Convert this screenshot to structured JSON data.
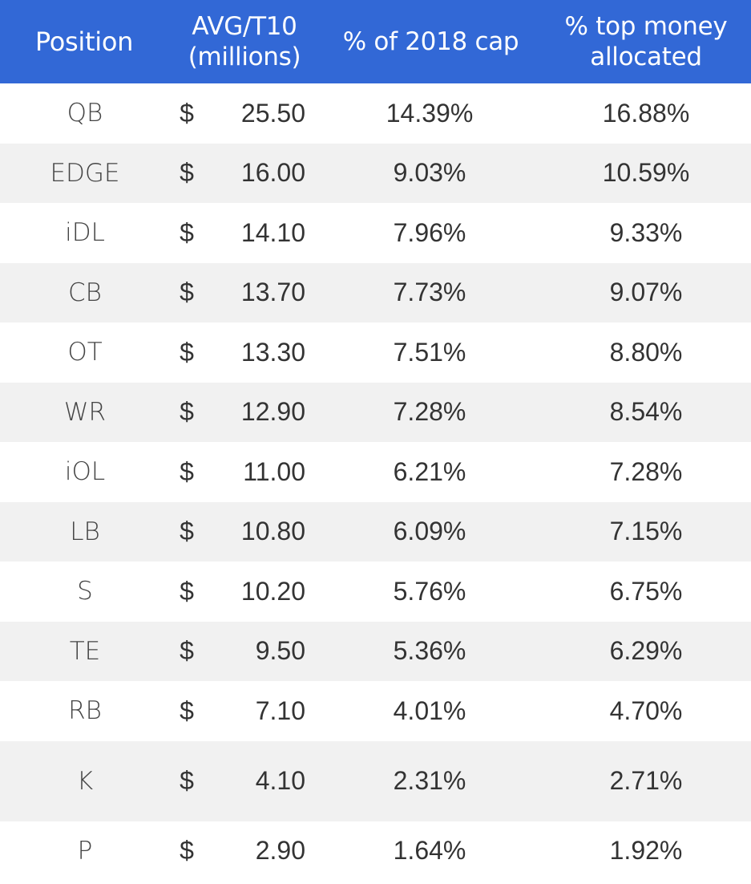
{
  "table": {
    "headers": {
      "position": "Position",
      "avg_line1": "AVG/T10",
      "avg_line2": "(millions)",
      "cap": "% of 2018 cap",
      "top_line1": "% top money",
      "top_line2": "allocated"
    },
    "currency_symbol": "$",
    "rows": [
      {
        "position": "QB",
        "avg": "25.50",
        "cap": "14.39%",
        "top": "16.88%"
      },
      {
        "position": "EDGE",
        "avg": "16.00",
        "cap": "9.03%",
        "top": "10.59%"
      },
      {
        "position": "iDL",
        "avg": "14.10",
        "cap": "7.96%",
        "top": "9.33%"
      },
      {
        "position": "CB",
        "avg": "13.70",
        "cap": "7.73%",
        "top": "9.07%"
      },
      {
        "position": "OT",
        "avg": "13.30",
        "cap": "7.51%",
        "top": "8.80%"
      },
      {
        "position": "WR",
        "avg": "12.90",
        "cap": "7.28%",
        "top": "8.54%"
      },
      {
        "position": "iOL",
        "avg": "11.00",
        "cap": "6.21%",
        "top": "7.28%"
      },
      {
        "position": "LB",
        "avg": "10.80",
        "cap": "6.09%",
        "top": "7.15%"
      },
      {
        "position": "S",
        "avg": "10.20",
        "cap": "5.76%",
        "top": "6.75%"
      },
      {
        "position": "TE",
        "avg": "9.50",
        "cap": "5.36%",
        "top": "6.29%"
      },
      {
        "position": "RB",
        "avg": "7.10",
        "cap": "4.01%",
        "top": "4.70%"
      },
      {
        "position": "K",
        "avg": "4.10",
        "cap": "2.31%",
        "top": "2.71%"
      },
      {
        "position": "P",
        "avg": "2.90",
        "cap": "1.64%",
        "top": "1.92%"
      }
    ]
  },
  "colors": {
    "header_bg": "#3268d6",
    "header_text": "#ffffff",
    "row_alt_bg": "#f1f1f1",
    "text": "#333333"
  }
}
